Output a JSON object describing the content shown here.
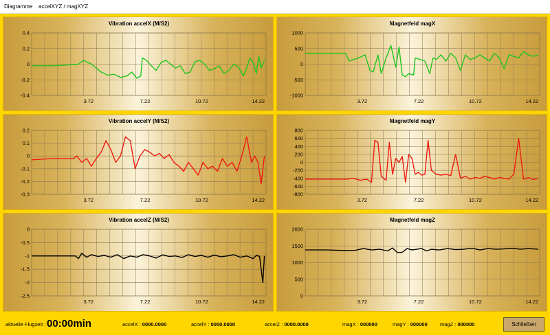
{
  "window": {
    "title_part1": "Diagramme",
    "title_part2": "accelXYZ /  magXYZ"
  },
  "colors": {
    "accelX": "#22c41e",
    "accelY": "#ee1b12",
    "accelZ": "#000000",
    "magX": "#22c41e",
    "magY": "#ee1b12",
    "magZ": "#000000"
  },
  "chart_data": [
    {
      "id": "accelX",
      "type": "line",
      "title": "Vibration  accelX (M/S2)",
      "ylim": [
        -0.4,
        0.4
      ],
      "yticks": [
        0.4,
        0.2,
        0,
        -0.2,
        -0.4
      ],
      "yticklabels": [
        "0.4",
        "0.2",
        "0",
        "-0.2",
        "-0.4"
      ],
      "xticks": [
        3.72,
        7.22,
        10.72,
        14.22
      ],
      "xticklabels": [
        "3.72",
        "7.22",
        "10.72",
        "14.22"
      ],
      "xlim": [
        0.2,
        14.7
      ],
      "series": [
        {
          "color": "#22c41e",
          "x": [
            0.2,
            1.5,
            2.5,
            3.1,
            3.4,
            3.6,
            3.9,
            4.2,
            4.5,
            4.9,
            5.3,
            5.7,
            6.1,
            6.4,
            6.7,
            6.95,
            7.05,
            7.3,
            7.6,
            7.9,
            8.2,
            8.5,
            8.8,
            9.1,
            9.4,
            9.7,
            10.0,
            10.3,
            10.6,
            10.9,
            11.2,
            11.5,
            11.8,
            12.1,
            12.4,
            12.7,
            13.0,
            13.3,
            13.5,
            13.7,
            13.9,
            14.1,
            14.25,
            14.4,
            14.6
          ],
          "y": [
            -0.02,
            -0.02,
            -0.01,
            0.0,
            0.05,
            0.03,
            0.0,
            -0.05,
            -0.1,
            -0.14,
            -0.13,
            -0.17,
            -0.15,
            -0.1,
            -0.18,
            -0.15,
            0.08,
            0.05,
            -0.02,
            -0.08,
            0.02,
            0.05,
            0.0,
            -0.05,
            -0.02,
            -0.12,
            -0.1,
            0.03,
            0.05,
            0.0,
            -0.08,
            -0.06,
            -0.02,
            -0.12,
            -0.08,
            0.0,
            -0.04,
            -0.15,
            -0.05,
            0.08,
            0.02,
            -0.12,
            0.1,
            -0.05,
            0.05
          ]
        }
      ]
    },
    {
      "id": "magX",
      "type": "line",
      "title": "Magnetfeld magX",
      "ylim": [
        -1000,
        1000
      ],
      "yticks": [
        1000,
        500,
        0,
        -500,
        -1000
      ],
      "yticklabels": [
        "1000",
        "500",
        "0",
        "-500",
        "-1000"
      ],
      "xticks": [
        3.72,
        7.22,
        10.72,
        14.22
      ],
      "xticklabels": [
        "3.72",
        "7.22",
        "10.72",
        "14.22"
      ],
      "xlim": [
        0.2,
        14.7
      ],
      "series": [
        {
          "color": "#22c41e",
          "x": [
            0.2,
            1.5,
            2.7,
            2.9,
            3.5,
            3.9,
            4.2,
            4.4,
            4.7,
            4.9,
            5.2,
            5.5,
            5.8,
            6.0,
            6.2,
            6.4,
            6.6,
            6.9,
            7.0,
            7.3,
            7.6,
            7.9,
            8.1,
            8.3,
            8.6,
            8.9,
            9.2,
            9.5,
            9.8,
            10.1,
            10.4,
            10.7,
            11.0,
            11.3,
            11.6,
            11.9,
            12.2,
            12.5,
            12.8,
            13.1,
            13.4,
            13.7,
            14.0,
            14.3,
            14.6
          ],
          "y": [
            350,
            350,
            350,
            100,
            200,
            300,
            -200,
            -250,
            300,
            -300,
            200,
            600,
            -100,
            550,
            -350,
            -400,
            -300,
            -350,
            200,
            150,
            100,
            -300,
            200,
            150,
            300,
            100,
            350,
            200,
            -200,
            300,
            150,
            200,
            300,
            200,
            100,
            350,
            200,
            -150,
            300,
            250,
            200,
            400,
            300,
            250,
            300
          ]
        }
      ]
    },
    {
      "id": "accelY",
      "type": "line",
      "title": "Vibration  accelY (M/S2)",
      "ylim": [
        -0.3,
        0.2
      ],
      "yticks": [
        0.2,
        0.1,
        0,
        -0.1,
        -0.2,
        -0.3
      ],
      "yticklabels": [
        "0.2",
        "0.1",
        "0",
        "-0.1",
        "-0.2",
        "-0.3"
      ],
      "xticks": [
        3.72,
        7.22,
        10.72,
        14.22
      ],
      "xticklabels": [
        "3.72",
        "7.22",
        "10.72",
        "14.22"
      ],
      "xlim": [
        0.2,
        14.7
      ],
      "series": [
        {
          "color": "#ee1b12",
          "x": [
            0.2,
            1.5,
            2.8,
            3.0,
            3.3,
            3.6,
            3.9,
            4.2,
            4.5,
            4.8,
            5.1,
            5.4,
            5.7,
            6.0,
            6.3,
            6.6,
            6.9,
            7.2,
            7.5,
            7.8,
            8.1,
            8.4,
            8.7,
            9.0,
            9.3,
            9.6,
            9.9,
            10.2,
            10.5,
            10.8,
            11.1,
            11.4,
            11.7,
            12.0,
            12.3,
            12.6,
            12.9,
            13.2,
            13.5,
            13.8,
            14.0,
            14.2,
            14.4,
            14.6
          ],
          "y": [
            -0.03,
            -0.02,
            -0.02,
            0.0,
            -0.05,
            -0.02,
            -0.08,
            -0.02,
            0.03,
            0.12,
            0.05,
            -0.05,
            0.0,
            0.15,
            0.12,
            -0.1,
            0.0,
            0.05,
            0.03,
            0.0,
            0.02,
            -0.02,
            0.01,
            -0.05,
            -0.08,
            -0.12,
            -0.05,
            -0.1,
            -0.15,
            -0.05,
            -0.1,
            -0.08,
            -0.12,
            -0.02,
            -0.08,
            -0.05,
            -0.12,
            0.0,
            0.15,
            -0.05,
            0.0,
            -0.05,
            -0.22,
            0.0
          ]
        }
      ]
    },
    {
      "id": "magY",
      "type": "line",
      "title": "Magnetfeld magY",
      "ylim": [
        -800,
        800
      ],
      "yticks": [
        800,
        600,
        400,
        200,
        0,
        -200,
        -400,
        -600,
        -800
      ],
      "yticklabels": [
        "800",
        "600",
        "400",
        "200",
        "0",
        "-200",
        "-400",
        "-600",
        "-800"
      ],
      "xticks": [
        3.72,
        7.22,
        10.72,
        14.22
      ],
      "xticklabels": [
        "3.72",
        "7.22",
        "10.72",
        "14.22"
      ],
      "xlim": [
        0.2,
        14.7
      ],
      "series": [
        {
          "color": "#ee1b12",
          "x": [
            0.2,
            1.5,
            2.8,
            3.2,
            3.6,
            4.0,
            4.3,
            4.5,
            4.7,
            4.9,
            5.2,
            5.4,
            5.6,
            5.8,
            6.0,
            6.2,
            6.4,
            6.6,
            6.8,
            7.0,
            7.2,
            7.4,
            7.6,
            7.8,
            8.0,
            8.3,
            8.6,
            8.9,
            9.2,
            9.5,
            9.8,
            10.1,
            10.4,
            10.7,
            11.0,
            11.3,
            11.6,
            11.9,
            12.2,
            12.5,
            12.8,
            13.1,
            13.4,
            13.7,
            14.0,
            14.3,
            14.6
          ],
          "y": [
            -420,
            -420,
            -420,
            -400,
            -450,
            -420,
            -500,
            550,
            500,
            -350,
            -450,
            500,
            -300,
            100,
            0,
            150,
            -500,
            200,
            100,
            -300,
            -250,
            -320,
            -300,
            550,
            -200,
            -300,
            -320,
            -300,
            -330,
            200,
            -400,
            -350,
            -420,
            -380,
            -400,
            -350,
            -380,
            -420,
            -380,
            -400,
            -420,
            -300,
            600,
            -420,
            -380,
            -430,
            -400
          ]
        }
      ]
    },
    {
      "id": "accelZ",
      "type": "line",
      "title": "Vibration  accelZ (M/S2)",
      "ylim": [
        -2.5,
        0
      ],
      "yticks": [
        0,
        -0.5,
        -1,
        -1.5,
        -2,
        -2.5
      ],
      "yticklabels": [
        "0",
        "-0.5",
        "-1",
        "-1.5",
        "-2",
        "-2.5"
      ],
      "xticks": [
        3.72,
        7.22,
        10.72,
        14.22
      ],
      "xticklabels": [
        "3.72",
        "7.22",
        "10.72",
        "14.22"
      ],
      "xlim": [
        0.2,
        14.7
      ],
      "series": [
        {
          "color": "#000000",
          "x": [
            0.2,
            1.5,
            2.9,
            3.1,
            3.3,
            3.6,
            3.9,
            4.3,
            4.7,
            5.1,
            5.5,
            5.9,
            6.3,
            6.7,
            7.1,
            7.5,
            7.9,
            8.3,
            8.7,
            9.1,
            9.5,
            9.9,
            10.3,
            10.7,
            11.1,
            11.5,
            11.9,
            12.3,
            12.7,
            13.1,
            13.5,
            13.9,
            14.1,
            14.3,
            14.5,
            14.6
          ],
          "y": [
            -1.0,
            -1.0,
            -1.0,
            -1.1,
            -0.9,
            -1.05,
            -0.95,
            -1.02,
            -0.98,
            -1.05,
            -0.95,
            -1.1,
            -1.0,
            -1.05,
            -0.95,
            -1.0,
            -1.08,
            -0.96,
            -1.02,
            -1.0,
            -1.06,
            -0.95,
            -1.02,
            -0.98,
            -1.05,
            -0.97,
            -1.03,
            -1.0,
            -0.95,
            -1.05,
            -1.0,
            -1.1,
            -0.98,
            -1.02,
            -2.0,
            -1.0
          ]
        }
      ]
    },
    {
      "id": "magZ",
      "type": "line",
      "title": "Magnetfeld magZ",
      "ylim": [
        0,
        2000
      ],
      "yticks": [
        2000,
        1500,
        1000,
        500,
        0
      ],
      "yticklabels": [
        "2000",
        "1500",
        "1000",
        "500",
        "0"
      ],
      "xticks": [
        3.72,
        7.22,
        10.72,
        14.22
      ],
      "xticklabels": [
        "3.72",
        "7.22",
        "10.72",
        "14.22"
      ],
      "xlim": [
        0.2,
        14.7
      ],
      "series": [
        {
          "color": "#000000",
          "x": [
            0.2,
            1.5,
            2.8,
            3.3,
            3.8,
            4.3,
            4.8,
            5.3,
            5.6,
            5.9,
            6.2,
            6.5,
            6.8,
            7.1,
            7.4,
            7.7,
            8.0,
            8.5,
            9.0,
            9.5,
            10.0,
            10.5,
            11.0,
            11.5,
            12.0,
            12.5,
            13.0,
            13.5,
            14.0,
            14.3,
            14.6
          ],
          "y": [
            1380,
            1380,
            1360,
            1370,
            1420,
            1380,
            1400,
            1350,
            1440,
            1300,
            1310,
            1420,
            1380,
            1400,
            1420,
            1350,
            1400,
            1380,
            1420,
            1390,
            1400,
            1430,
            1380,
            1420,
            1400,
            1410,
            1430,
            1400,
            1420,
            1410,
            1400
          ]
        }
      ]
    }
  ],
  "status": {
    "flugzeit_label": "aktuelle Flugzeit :",
    "flugzeit_value": "00:00min",
    "accelX_label": "accelX :",
    "accelX_value": "0000.0000",
    "accelY_label": "accelY :",
    "accelY_value": "0000.0000",
    "accelZ_label": "accelZ :",
    "accelZ_value": "0000.0000",
    "magX_label": "magX :",
    "magX_value": "000000",
    "magY_label": "magY :",
    "magY_value": "000000",
    "magZ_label": "magZ :",
    "magZ_value": "000000"
  },
  "buttons": {
    "close_label": "Schließen"
  }
}
